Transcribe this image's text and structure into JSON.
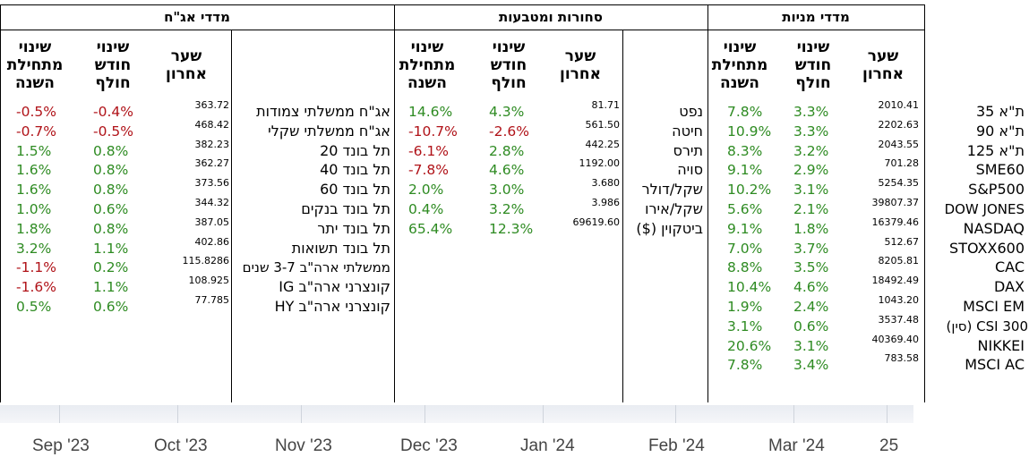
{
  "sections": {
    "bonds": {
      "title": "מדדי אג\"ח"
    },
    "commodities": {
      "title": "סחורות ומטבעות"
    },
    "stocks": {
      "title": "מדדי מניות"
    }
  },
  "headers": {
    "ytd": "שינוי מתחילת השנה",
    "month": "שינוי חודש חולף",
    "last": "שער אחרון"
  },
  "bonds": [
    {
      "name": "אג\"ח ממשלתי צמודות",
      "last": "363.72",
      "month": "-0.4%",
      "ytd": "-0.5%"
    },
    {
      "name": "אג\"ח ממשלתי שקלי",
      "last": "468.42",
      "month": "-0.5%",
      "ytd": "-0.7%"
    },
    {
      "name": "תל בונד 20",
      "last": "382.23",
      "month": "0.8%",
      "ytd": "1.5%"
    },
    {
      "name": "תל בונד 40",
      "last": "362.27",
      "month": "0.8%",
      "ytd": "1.6%"
    },
    {
      "name": "תל בונד 60",
      "last": "373.56",
      "month": "0.8%",
      "ytd": "1.6%"
    },
    {
      "name": "תל בונד בנקים",
      "last": "344.32",
      "month": "0.6%",
      "ytd": "1.0%"
    },
    {
      "name": "תל בונד יתר",
      "last": "387.05",
      "month": "0.8%",
      "ytd": "1.8%"
    },
    {
      "name": "תל בונד תשואות",
      "last": "402.86",
      "month": "1.1%",
      "ytd": "3.2%"
    },
    {
      "name": "ממשלתי ארה\"ב 3-7 שנים",
      "last": "115.8286",
      "month": "0.2%",
      "ytd": "-1.1%"
    },
    {
      "name": "קונצרני ארה\"ב IG",
      "last": "108.925",
      "month": "1.1%",
      "ytd": "-1.6%"
    },
    {
      "name": "קונצרני ארה\"ב HY",
      "last": "77.785",
      "month": "0.6%",
      "ytd": "0.5%"
    }
  ],
  "commodities": [
    {
      "name": "נפט",
      "last": "81.71",
      "month": "4.3%",
      "ytd": "14.6%"
    },
    {
      "name": "חיטה",
      "last": "561.50",
      "month": "-2.6%",
      "ytd": "-10.7%"
    },
    {
      "name": "תירס",
      "last": "442.25",
      "month": "2.8%",
      "ytd": "-6.1%"
    },
    {
      "name": "סויה",
      "last": "1192.00",
      "month": "4.6%",
      "ytd": "-7.8%"
    },
    {
      "name": "שקל/דולר",
      "last": "3.680",
      "month": "3.0%",
      "ytd": "2.0%"
    },
    {
      "name": "שקל/אירו",
      "last": "3.986",
      "month": "3.2%",
      "ytd": "0.4%"
    },
    {
      "name": "ביטקוין ($)",
      "last": "69619.60",
      "month": "12.3%",
      "ytd": "65.4%"
    }
  ],
  "stocks": [
    {
      "name": "ת\"א 35",
      "last": "2010.41",
      "month": "3.3%",
      "ytd": "7.8%"
    },
    {
      "name": "ת\"א 90",
      "last": "2202.63",
      "month": "3.3%",
      "ytd": "10.9%"
    },
    {
      "name": "ת\"א 125",
      "last": "2043.55",
      "month": "3.2%",
      "ytd": "8.3%"
    },
    {
      "name": "SME60",
      "last": "701.28",
      "month": "2.9%",
      "ytd": "9.1%"
    },
    {
      "name": "S&P500",
      "last": "5254.35",
      "month": "3.1%",
      "ytd": "10.2%"
    },
    {
      "name": "DOW JONES",
      "last": "39807.37",
      "month": "2.1%",
      "ytd": "5.6%"
    },
    {
      "name": "NASDAQ",
      "last": "16379.46",
      "month": "1.8%",
      "ytd": "9.1%"
    },
    {
      "name": "STOXX600",
      "last": "512.67",
      "month": "3.7%",
      "ytd": "7.0%"
    },
    {
      "name": "CAC",
      "last": "8205.81",
      "month": "3.5%",
      "ytd": "8.8%"
    },
    {
      "name": "DAX",
      "last": "18492.49",
      "month": "4.6%",
      "ytd": "10.4%"
    },
    {
      "name": "MSCI EM",
      "last": "1043.20",
      "month": "2.4%",
      "ytd": "1.9%"
    },
    {
      "name": "CSI 300 (סין)",
      "last": "3537.48",
      "month": "0.6%",
      "ytd": "3.1%"
    },
    {
      "name": "NIKKEI",
      "last": "40369.40",
      "month": "3.1%",
      "ytd": "20.6%"
    },
    {
      "name": "MSCI AC",
      "last": "783.58",
      "month": "3.4%",
      "ytd": "7.8%"
    }
  ],
  "x_axis": {
    "labels": [
      "Sep '23",
      "Oct '23",
      "Nov '23",
      "Dec '23",
      "Jan '24",
      "Feb '24",
      "Mar '24",
      "25"
    ]
  },
  "colors": {
    "negative": "#b01218",
    "positive": "#2e8b22"
  }
}
